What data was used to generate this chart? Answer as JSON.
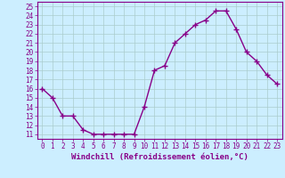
{
  "x": [
    0,
    1,
    2,
    3,
    4,
    5,
    6,
    7,
    8,
    9,
    10,
    11,
    12,
    13,
    14,
    15,
    16,
    17,
    18,
    19,
    20,
    21,
    22,
    23
  ],
  "y": [
    16,
    15,
    13,
    13,
    11.5,
    11,
    11,
    11,
    11,
    11,
    14,
    18,
    18.5,
    21,
    22,
    23,
    23.5,
    24.5,
    24.5,
    22.5,
    20,
    19,
    17.5,
    16.5
  ],
  "line_color": "#880088",
  "marker": "+",
  "markersize": 4,
  "linewidth": 1.0,
  "xlabel": "Windchill (Refroidissement éolien,°C)",
  "xlim": [
    -0.5,
    23.5
  ],
  "ylim": [
    10.5,
    25.5
  ],
  "yticks": [
    11,
    12,
    13,
    14,
    15,
    16,
    17,
    18,
    19,
    20,
    21,
    22,
    23,
    24,
    25
  ],
  "xticks": [
    0,
    1,
    2,
    3,
    4,
    5,
    6,
    7,
    8,
    9,
    10,
    11,
    12,
    13,
    14,
    15,
    16,
    17,
    18,
    19,
    20,
    21,
    22,
    23
  ],
  "bg_color": "#cceeff",
  "grid_color": "#aacccc",
  "tick_label_size": 5.5,
  "xlabel_size": 6.5,
  "xlabel_color": "#880088"
}
